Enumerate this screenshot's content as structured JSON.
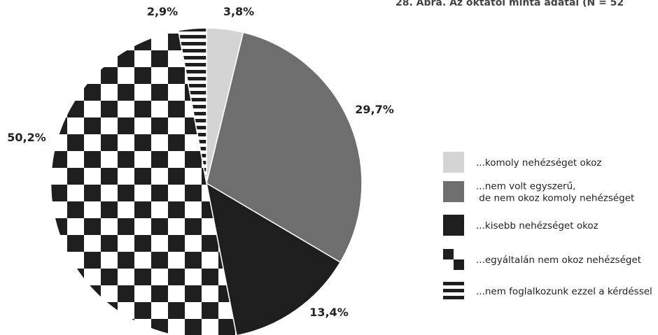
{
  "chart_data": {
    "type": "pie",
    "title": "28. Ábra. Az oktatói minta adatai (N = 52",
    "slices": [
      {
        "label": "...komoly nehézséget okoz",
        "value": 3.8,
        "value_label": "3,8%",
        "pattern": "light",
        "color": "#d4d4d4"
      },
      {
        "label": "...nem volt egyszerű,\nde nem okoz komoly nehézséget",
        "value": 29.7,
        "value_label": "29,7%",
        "pattern": "gray",
        "color": "#6e6e6e"
      },
      {
        "label": "...kisebb nehézséget okoz",
        "value": 13.4,
        "value_label": "13,4%",
        "pattern": "black",
        "color": "#1e1e1e"
      },
      {
        "label": "...egyáltalán nem okoz nehézséget",
        "value": 50.2,
        "value_label": "50,2%",
        "pattern": "checker",
        "color": "#1e1e1e"
      },
      {
        "label": "...nem foglalkozunk ezzel a kérdéssel",
        "value": 2.9,
        "value_label": "2,9%",
        "pattern": "stripes",
        "color": "#1e1e1e"
      }
    ],
    "legend": "right"
  }
}
